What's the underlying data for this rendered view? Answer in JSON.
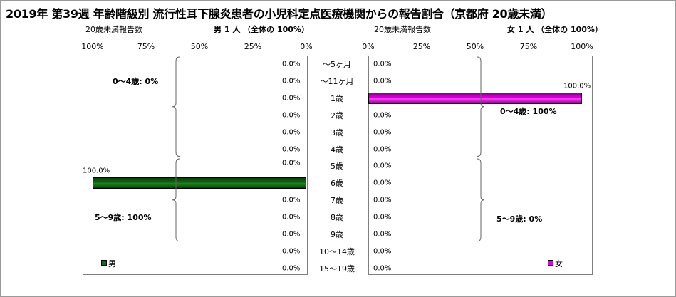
{
  "title": "2019年 第39週 年齢階級別 流行性耳下腺炎患者の小児科定点医療機関からの報告割合（京都府 20歳未満）",
  "left_header": {
    "label": "20歳未満報告数",
    "summary": "男  1 人  （全体の   100%）"
  },
  "right_header": {
    "label": "20歳未満報告数",
    "summary": "女  1 人  （全体の   100%）"
  },
  "colors": {
    "male": "#116b11",
    "female": "#e000e0",
    "brace": "#666666"
  },
  "chart_data": [
    {
      "type": "bar",
      "orientation": "horizontal",
      "direction": "right-to-left",
      "series": [
        {
          "name": "男",
          "values": [
            0,
            0,
            0,
            0,
            0,
            0,
            0,
            100,
            0,
            0,
            0,
            0,
            0
          ]
        }
      ],
      "value_labels": [
        "0.0%",
        "0.0%",
        "0.0%",
        "0.0%",
        "0.0%",
        "0.0%",
        "0.0%",
        "100.0%",
        "0.0%",
        "0.0%",
        "0.0%",
        "0.0%",
        "0.0%"
      ],
      "xlim": [
        0,
        100
      ],
      "xticks": [
        "100%",
        "75%",
        "50%",
        "25%",
        "0%"
      ],
      "annotations": [
        "0～4歳: 0%",
        "5～9歳: 100%"
      ],
      "legend": "bottom-left"
    },
    {
      "type": "bar",
      "orientation": "horizontal",
      "direction": "left-to-right",
      "series": [
        {
          "name": "女",
          "values": [
            0,
            0,
            100,
            0,
            0,
            0,
            0,
            0,
            0,
            0,
            0,
            0,
            0
          ]
        }
      ],
      "value_labels": [
        "0.0%",
        "0.0%",
        "100.0%",
        "0.0%",
        "0.0%",
        "0.0%",
        "0.0%",
        "0.0%",
        "0.0%",
        "0.0%",
        "0.0%",
        "0.0%",
        "0.0%"
      ],
      "xlim": [
        0,
        100
      ],
      "xticks": [
        "0%",
        "25%",
        "50%",
        "75%",
        "100%"
      ],
      "annotations": [
        "0～4歳: 100%",
        "5～9歳: 0%"
      ],
      "legend": "bottom-right"
    }
  ],
  "categories": [
    "～5ヶ月",
    "～11ヶ月",
    "1歳",
    "2歳",
    "3歳",
    "4歳",
    "5歳",
    "6歳",
    "7歳",
    "8歳",
    "9歳",
    "10～14歳",
    "15～19歳"
  ]
}
